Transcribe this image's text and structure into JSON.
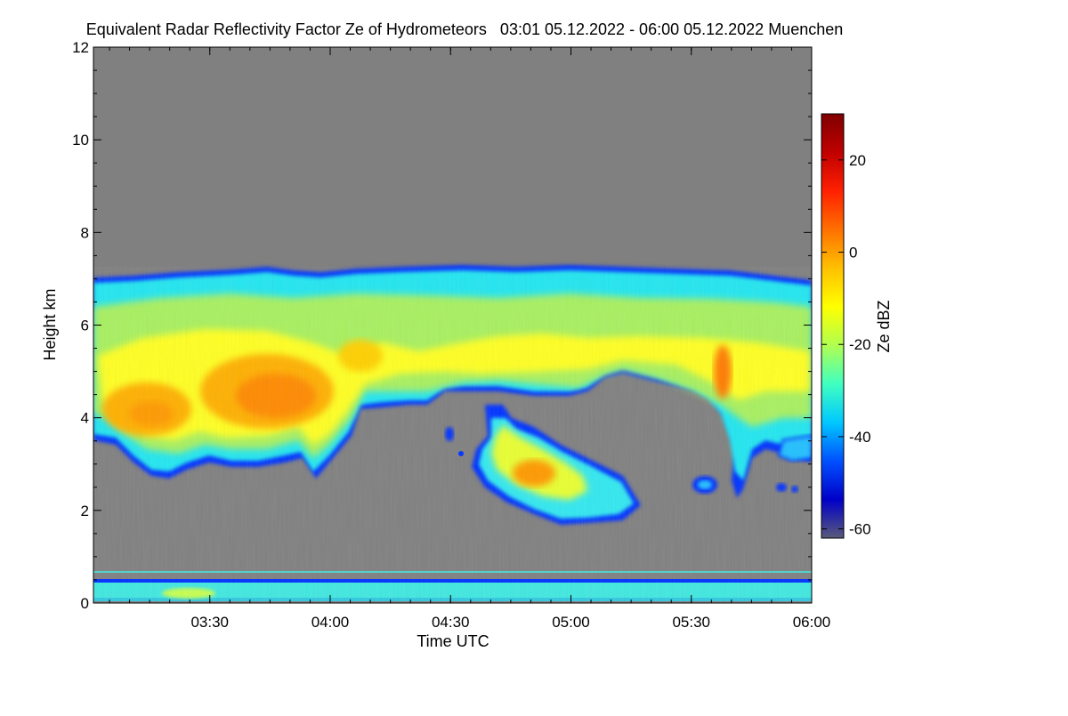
{
  "chart_data": {
    "type": "heatmap",
    "title": "Equivalent Radar Reflectivity Factor Ze of Hydrometeors   03:01 05.12.2022 - 06:00 05.12.2022 Muenchen",
    "xlabel": "Time UTC",
    "ylabel": "Height km",
    "x_range": [
      "03:01",
      "06:00"
    ],
    "x_ticks": [
      "03:30",
      "04:00",
      "04:30",
      "05:00",
      "05:30",
      "06:00"
    ],
    "ylim": [
      0,
      12
    ],
    "y_ticks": [
      "0",
      "2",
      "4",
      "6",
      "8",
      "10",
      "12"
    ],
    "grid": false,
    "colorbar": {
      "label": "Ze dBZ",
      "range": [
        -62,
        30
      ],
      "ticks": [
        "-60",
        "-40",
        "-20",
        "0",
        "20"
      ],
      "colors": [
        "#5a5a7a",
        "#0000c8",
        "#0050ff",
        "#00c8ff",
        "#40ffc0",
        "#b0ff50",
        "#ffff00",
        "#ffc000",
        "#ff7000",
        "#ff2000",
        "#c00000",
        "#800000"
      ]
    },
    "background_color": "#808080",
    "note_features": [
      {
        "name": "upper cloud layer",
        "time_start": "03:01",
        "time_end": "06:00",
        "top_km": 7.0,
        "base_km": 3.5,
        "peak_dbz": 5
      },
      {
        "name": "lower precipitation band",
        "time_start": "04:40",
        "time_end": "05:18",
        "top_km": 4.0,
        "base_km": 1.7,
        "peak_dbz": 3
      },
      {
        "name": "near-surface echo",
        "time_start": "03:01",
        "time_end": "06:00",
        "top_km": 0.45,
        "base_km": 0.0,
        "peak_dbz": -20
      }
    ]
  }
}
